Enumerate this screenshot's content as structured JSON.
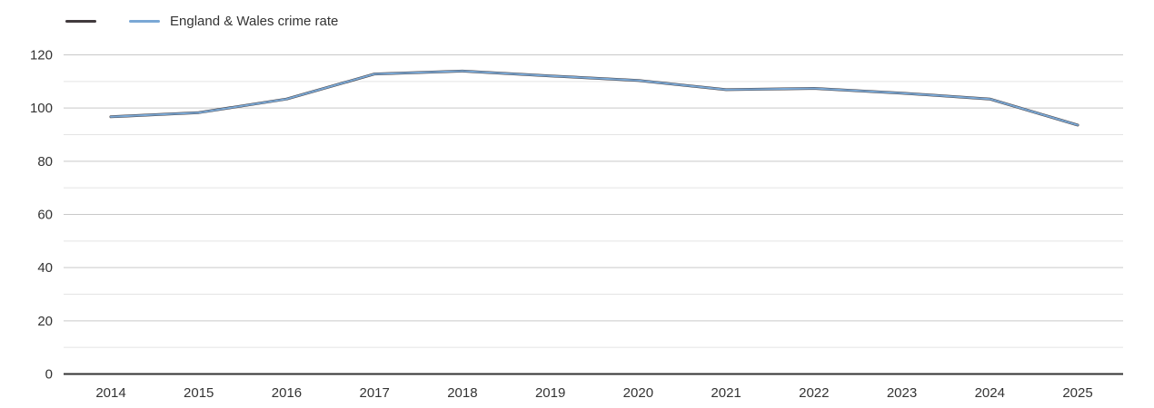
{
  "chart": {
    "legend": [
      {
        "label": "",
        "color": "#413a3d"
      },
      {
        "label": "England & Wales crime rate",
        "color": "#7aa8d5"
      }
    ]
  },
  "chart_data": {
    "type": "line",
    "title": "",
    "xlabel": "",
    "ylabel": "",
    "categories": [
      "2014",
      "2015",
      "2016",
      "2017",
      "2018",
      "2019",
      "2020",
      "2021",
      "2022",
      "2023",
      "2024",
      "2025"
    ],
    "series": [
      {
        "name": "",
        "color": "#413a3d",
        "values": [
          96.7,
          98.3,
          103.4,
          112.8,
          113.9,
          112.1,
          110.4,
          106.9,
          107.4,
          105.6,
          103.4,
          93.6
        ]
      },
      {
        "name": "England & Wales crime rate",
        "color": "#7aa8d5",
        "values": [
          96.7,
          98.3,
          103.4,
          112.8,
          113.9,
          112.1,
          110.4,
          106.9,
          107.4,
          105.6,
          103.4,
          93.6
        ]
      }
    ],
    "ylim": [
      0,
      120
    ],
    "yticks": [
      0,
      20,
      40,
      60,
      80,
      100,
      120
    ],
    "minor_grid_step": 10,
    "major_grid_step": 20,
    "grid": true,
    "legend_position": "top-left",
    "axis_color": "#333333",
    "major_grid_color": "#c9c9c9",
    "minor_grid_color": "#e4e4e4"
  }
}
